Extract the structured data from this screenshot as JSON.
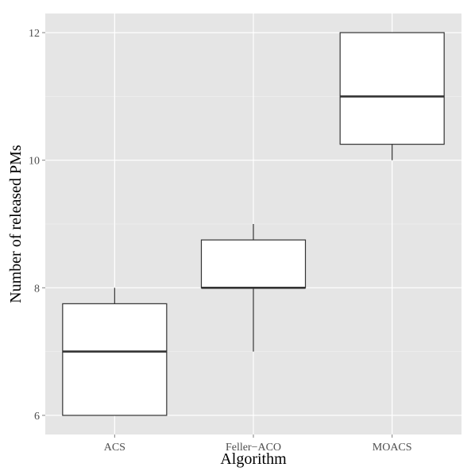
{
  "chart_data": {
    "type": "box",
    "title": "",
    "xlabel": "Algorithm",
    "ylabel": "Number of released PMs",
    "categories": [
      "ACS",
      "Feller−ACO",
      "MOACS"
    ],
    "boxes": [
      {
        "category": "ACS",
        "whisker_low": 6,
        "q1": 6,
        "median": 7,
        "q3": 7.75,
        "whisker_high": 8
      },
      {
        "category": "Feller−ACO",
        "whisker_low": 7,
        "q1": 8,
        "median": 8,
        "q3": 8.75,
        "whisker_high": 9
      },
      {
        "category": "MOACS",
        "whisker_low": 10,
        "q1": 10.25,
        "median": 11,
        "q3": 12,
        "whisker_high": 12
      }
    ],
    "y_ticks": [
      6,
      8,
      10,
      12
    ],
    "y_tick_labels": [
      "6",
      "8",
      "10",
      "12"
    ],
    "ylim": [
      5.7,
      12.3
    ],
    "grid": true,
    "legend": "none",
    "colors": {
      "panel": "#e5e5e5",
      "grid_major": "#ffffff",
      "grid_minor": "#f2f2f2",
      "box_fill": "#ffffff",
      "box_stroke": "#333333",
      "tick_text": "#4d4d4d",
      "title_text": "#000000"
    }
  }
}
